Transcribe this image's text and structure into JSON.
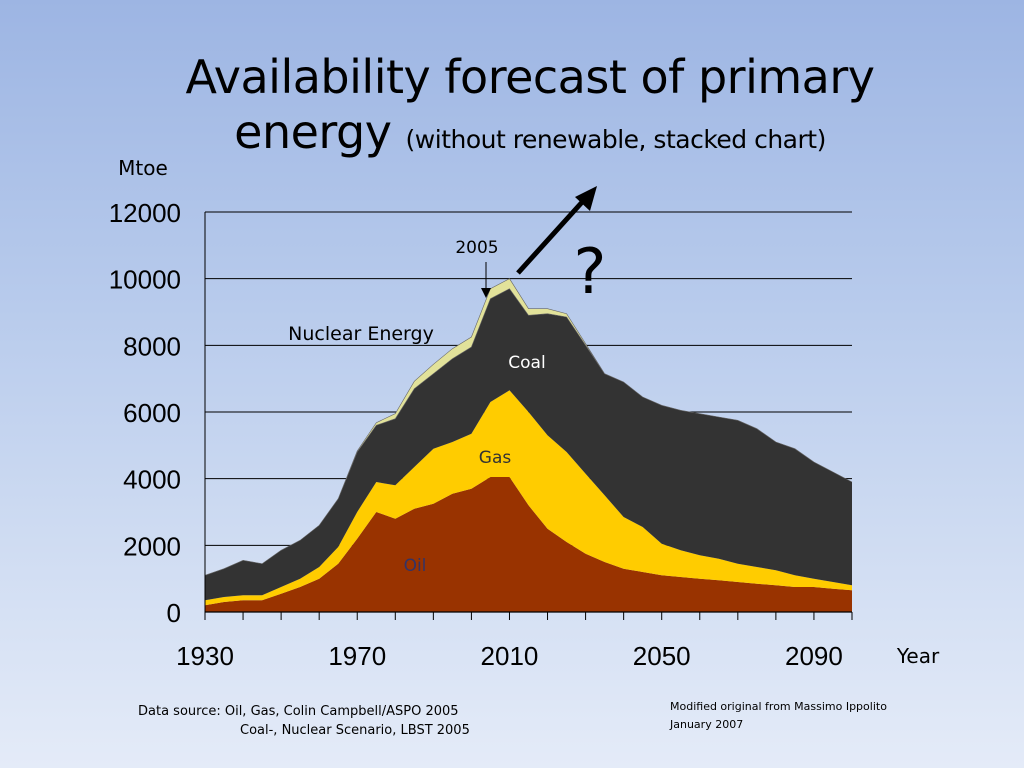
{
  "slide": {
    "title_main_line1": "Availability forecast of primary",
    "title_main_line2": "energy",
    "title_sub": "(without renewable, stacked chart)",
    "footnote_line1": "Data source: Oil, Gas, Colin Campbell/ASPO 2005",
    "footnote_line2": "Coal-, Nuclear Scenario, LBST 2005",
    "credit_line1": "Modified original from Massimo Ippolito",
    "credit_line2": "January 2007"
  },
  "chart_data": {
    "type": "area",
    "stacked": true,
    "title": "Availability forecast of primary energy (without renewable, stacked chart)",
    "xlabel": "Year",
    "ylabel": "Mtoe",
    "xlim": [
      1930,
      2100
    ],
    "ylim": [
      0,
      12000
    ],
    "x_ticks": [
      1930,
      1970,
      2010,
      2050,
      2090
    ],
    "y_ticks": [
      0,
      2000,
      4000,
      6000,
      8000,
      10000,
      12000
    ],
    "grid": "horizontal",
    "x": [
      1930,
      1935,
      1940,
      1945,
      1950,
      1955,
      1960,
      1965,
      1970,
      1975,
      1980,
      1985,
      1990,
      1995,
      2000,
      2005,
      2010,
      2015,
      2020,
      2025,
      2030,
      2035,
      2040,
      2045,
      2050,
      2055,
      2060,
      2065,
      2070,
      2075,
      2080,
      2085,
      2090,
      2095,
      2100
    ],
    "series": [
      {
        "name": "Oil",
        "color": "#993300",
        "values": [
          200,
          300,
          350,
          350,
          550,
          750,
          1000,
          1450,
          2200,
          3000,
          2800,
          3100,
          3250,
          3550,
          3700,
          4050,
          4050,
          3200,
          2500,
          2100,
          1750,
          1500,
          1300,
          1200,
          1100,
          1050,
          1000,
          950,
          900,
          850,
          800,
          750,
          750,
          700,
          650
        ]
      },
      {
        "name": "Gas",
        "color": "#ffcc00",
        "values": [
          150,
          150,
          150,
          150,
          200,
          250,
          350,
          500,
          800,
          900,
          1000,
          1250,
          1650,
          1550,
          1650,
          2250,
          2600,
          2800,
          2800,
          2700,
          2400,
          2000,
          1550,
          1350,
          950,
          800,
          700,
          650,
          550,
          500,
          450,
          350,
          250,
          200,
          150
        ]
      },
      {
        "name": "Coal",
        "color": "#333333",
        "values": [
          750,
          850,
          1050,
          950,
          1100,
          1150,
          1250,
          1450,
          1800,
          1700,
          2000,
          2350,
          2250,
          2500,
          2600,
          3100,
          3050,
          2900,
          3650,
          4050,
          3850,
          3650,
          4050,
          3900,
          4150,
          4200,
          4250,
          4250,
          4300,
          4150,
          3850,
          3800,
          3500,
          3300,
          3100
        ]
      },
      {
        "name": "Nuclear Energy",
        "color": "#e2e29a",
        "values": [
          0,
          0,
          0,
          0,
          0,
          0,
          0,
          0,
          30,
          80,
          150,
          220,
          280,
          300,
          300,
          300,
          300,
          200,
          150,
          100,
          50,
          0,
          0,
          0,
          0,
          0,
          0,
          0,
          0,
          0,
          0,
          0,
          0,
          0,
          0
        ]
      }
    ],
    "annotations": [
      "2005",
      "?",
      "Nuclear Energy",
      "Coal",
      "Gas",
      "Oil"
    ]
  }
}
